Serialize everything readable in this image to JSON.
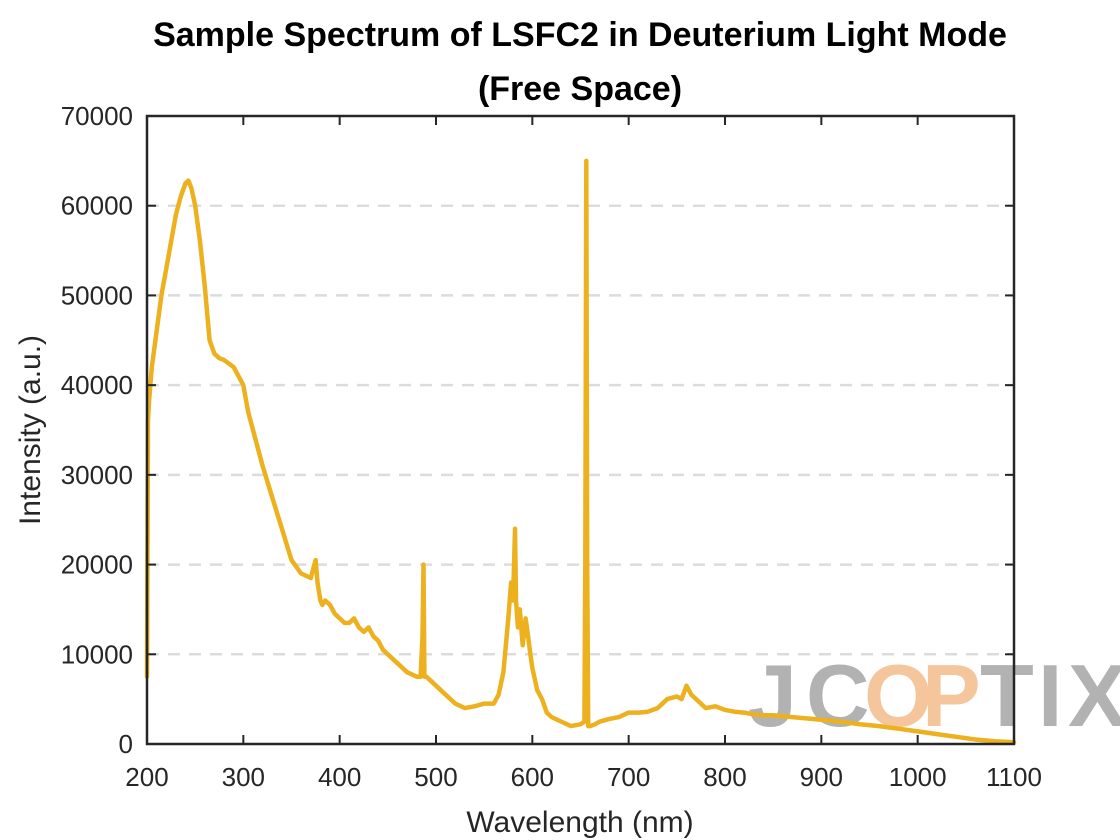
{
  "chart_data": {
    "type": "line",
    "title": "Sample Spectrum of LSFC2 in Deuterium Light Mode",
    "subtitle": "(Free Space)",
    "xlabel": "Wavelength (nm)",
    "ylabel": "Intensity (a.u.)",
    "xlim": [
      200,
      1100
    ],
    "ylim": [
      0,
      70000
    ],
    "xticks": [
      200,
      300,
      400,
      500,
      600,
      700,
      800,
      900,
      1000,
      1100
    ],
    "yticks": [
      0,
      10000,
      20000,
      30000,
      40000,
      50000,
      60000,
      70000
    ],
    "grid": "y-dashed",
    "color": "#EDB120",
    "watermark": "JCOPTIX",
    "watermark_colors": {
      "base": "#999999",
      "accent": "#F2B27A"
    },
    "series": [
      {
        "x": [
          200,
          201,
          202,
          205,
          210,
          215,
          220,
          225,
          230,
          235,
          240,
          243,
          246,
          250,
          255,
          260,
          265,
          270,
          275,
          280,
          290,
          300,
          305,
          310,
          320,
          330,
          340,
          350,
          360,
          370,
          375,
          377,
          380,
          382,
          385,
          390,
          395,
          400,
          405,
          410,
          415,
          420,
          425,
          430,
          435,
          440,
          445,
          450,
          455,
          460,
          470,
          480,
          484,
          486,
          487,
          488,
          490,
          495,
          500,
          510,
          520,
          530,
          540,
          550,
          560,
          565,
          570,
          575,
          578,
          580,
          582,
          583,
          585,
          587,
          590,
          593,
          595,
          598,
          600,
          605,
          610,
          615,
          620,
          630,
          640,
          650,
          654,
          655,
          656,
          657,
          658,
          660,
          665,
          670,
          680,
          690,
          700,
          710,
          720,
          730,
          740,
          750,
          755,
          760,
          765,
          770,
          780,
          790,
          800,
          810,
          820,
          830,
          840,
          850,
          860,
          870,
          880,
          890,
          900,
          920,
          940,
          960,
          980,
          1000,
          1020,
          1040,
          1060,
          1080,
          1100
        ],
        "values": [
          7500,
          36000,
          38000,
          42000,
          46000,
          50000,
          53000,
          56000,
          59000,
          61000,
          62500,
          62800,
          62000,
          60000,
          56000,
          51000,
          45000,
          43500,
          43000,
          42800,
          42000,
          40000,
          37000,
          35000,
          31000,
          27500,
          24000,
          20500,
          19000,
          18500,
          20500,
          18000,
          16000,
          15500,
          16000,
          15500,
          14500,
          14000,
          13500,
          13500,
          14000,
          13000,
          12500,
          13000,
          12000,
          11500,
          10500,
          10000,
          9500,
          9000,
          8000,
          7500,
          7500,
          12000,
          20000,
          7500,
          7500,
          7000,
          6500,
          5500,
          4500,
          4000,
          4200,
          4500,
          4500,
          5500,
          8000,
          14000,
          18000,
          16000,
          24000,
          16000,
          13000,
          15000,
          11000,
          14000,
          12500,
          10000,
          8500,
          6000,
          5000,
          3500,
          3000,
          2500,
          2000,
          2200,
          2500,
          20000,
          65000,
          20000,
          2000,
          2000,
          2200,
          2500,
          2800,
          3000,
          3500,
          3500,
          3600,
          4000,
          5000,
          5300,
          5000,
          6500,
          5500,
          5000,
          4000,
          4200,
          3800,
          3600,
          3500,
          3300,
          3200,
          3200,
          3100,
          3000,
          2900,
          2800,
          2700,
          2500,
          2200,
          2000,
          1700,
          1400,
          1100,
          800,
          500,
          300,
          200
        ]
      }
    ]
  }
}
